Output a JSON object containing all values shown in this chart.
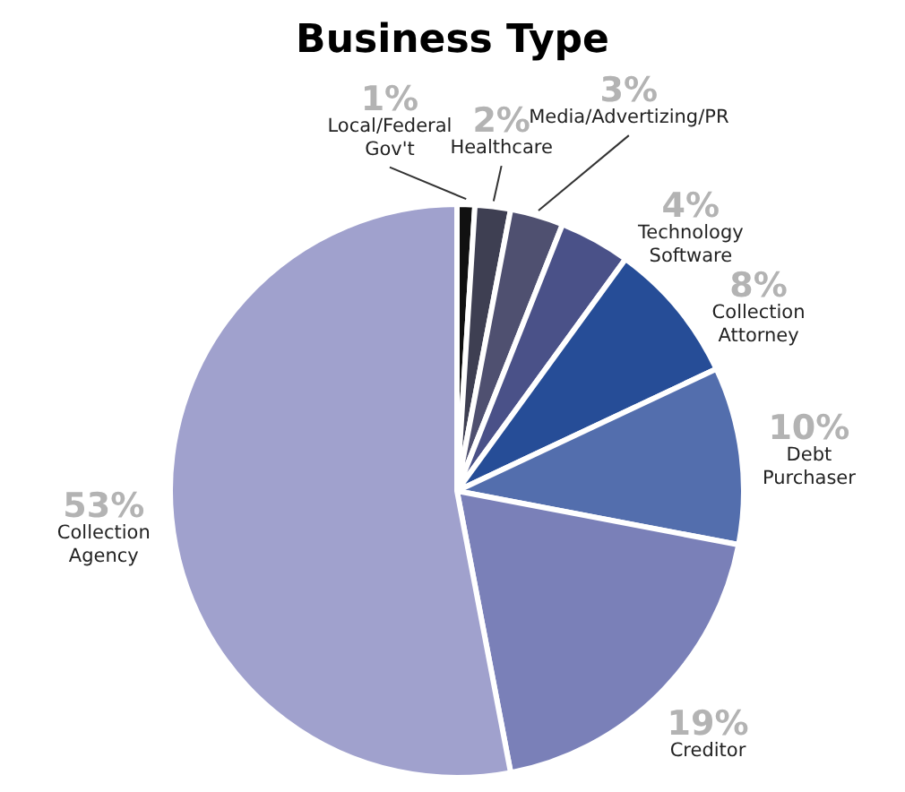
{
  "chart_data": {
    "type": "pie",
    "title": "Business Type",
    "categories": [
      "Local/Federal Gov't",
      "Healthcare",
      "Media/Advertizing/PR",
      "Technology Software",
      "Collection Attorney",
      "Debt Purchaser",
      "Creditor",
      "Collection Agency"
    ],
    "values": [
      1,
      2,
      3,
      4,
      8,
      10,
      19,
      53
    ],
    "colors": [
      "#111111",
      "#3e3f52",
      "#4f5070",
      "#4a5188",
      "#264d97",
      "#536ead",
      "#7a80b8",
      "#a0a1cd"
    ],
    "value_labels": [
      "1%",
      "2%",
      "3%",
      "4%",
      "8%",
      "10%",
      "19%",
      "53%"
    ],
    "legend": false
  }
}
